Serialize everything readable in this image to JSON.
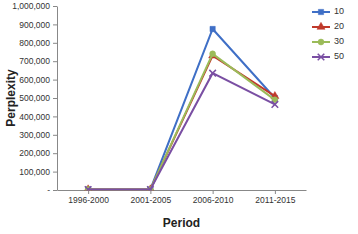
{
  "chart_data": {
    "type": "line",
    "x_label": "Period",
    "y_label": "Perplexity",
    "categories": [
      "1996-2000",
      "2001-2005",
      "2006-2010",
      "2011-2015"
    ],
    "series": [
      {
        "name": "10",
        "color": "#3f6fc6",
        "marker": "square",
        "values": [
          3000,
          3000,
          875000,
          500000
        ]
      },
      {
        "name": "20",
        "color": "#c0392b",
        "marker": "triangle",
        "values": [
          3000,
          3000,
          730000,
          510000
        ]
      },
      {
        "name": "30",
        "color": "#9bbb59",
        "marker": "circle",
        "values": [
          3000,
          3000,
          740000,
          490000
        ]
      },
      {
        "name": "50",
        "color": "#7a4fa3",
        "marker": "x",
        "values": [
          3000,
          3000,
          635000,
          465000
        ]
      }
    ],
    "ylim": [
      0,
      1000000
    ],
    "yticks": [
      {
        "value": 0,
        "label": "-"
      },
      {
        "value": 100000,
        "label": "100,000"
      },
      {
        "value": 200000,
        "label": "200,000"
      },
      {
        "value": 300000,
        "label": "300,000"
      },
      {
        "value": 400000,
        "label": "400,000"
      },
      {
        "value": 500000,
        "label": "500,000"
      },
      {
        "value": 600000,
        "label": "600,000"
      },
      {
        "value": 700000,
        "label": "700,000"
      },
      {
        "value": 800000,
        "label": "800,000"
      },
      {
        "value": 900000,
        "label": "900,000"
      },
      {
        "value": 1000000,
        "label": "1,000,000"
      }
    ],
    "grid": false,
    "legend": "right"
  }
}
